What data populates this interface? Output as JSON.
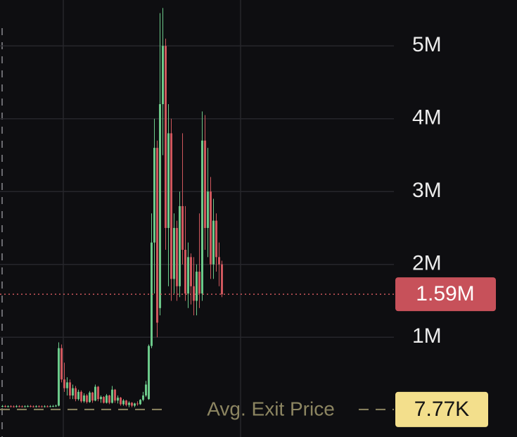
{
  "chart_data": {
    "type": "candlestick",
    "ylim": [
      -370000,
      5630000
    ],
    "yticks": [
      {
        "value": 1000000,
        "label": "1M"
      },
      {
        "value": 2000000,
        "label": "2M"
      },
      {
        "value": 3000000,
        "label": "3M"
      },
      {
        "value": 4000000,
        "label": "4M"
      },
      {
        "value": 5000000,
        "label": "5M"
      }
    ],
    "grid": true,
    "up_color": "#6cc98a",
    "down_color": "#cf575d",
    "current_price": {
      "value": 1590000,
      "label": "1.59M"
    },
    "avg_exit_price": {
      "value": 7770,
      "label": "7.77K",
      "text": "Avg. Exit Price"
    },
    "open": [
      50000,
      55000,
      48000,
      52000,
      50000,
      47000,
      53000,
      50000,
      49000,
      51000,
      54000,
      50000,
      48000,
      52000,
      50000,
      49000,
      51000,
      50000,
      53000,
      55000,
      60000,
      850000,
      420000,
      300000,
      380000,
      200000,
      300000,
      150000,
      250000,
      120000,
      200000,
      110000,
      240000,
      130000,
      320000,
      150000,
      180000,
      100000,
      200000,
      100000,
      280000,
      130000,
      170000,
      80000,
      130000,
      70000,
      100000,
      60000,
      90000,
      80000,
      140000,
      200000,
      150000,
      880000,
      2300000,
      3600000,
      1400000,
      4200000,
      5000000,
      2500000,
      3800000,
      1800000,
      2500000,
      1700000,
      2800000,
      2200000,
      1600000,
      2100000,
      1700000,
      1500000,
      1900000,
      1600000,
      3700000,
      2500000,
      3000000,
      2000000,
      2600000,
      2100000,
      2000000
    ],
    "high": [
      70000,
      68000,
      65000,
      66000,
      64000,
      68000,
      66000,
      64000,
      65000,
      69000,
      68000,
      63000,
      66000,
      65000,
      64000,
      66000,
      65000,
      67000,
      70000,
      75000,
      930000,
      900000,
      650000,
      450000,
      420000,
      350000,
      330000,
      280000,
      270000,
      230000,
      220000,
      260000,
      250000,
      350000,
      330000,
      200000,
      190000,
      220000,
      210000,
      330000,
      290000,
      200000,
      180000,
      150000,
      140000,
      120000,
      110000,
      100000,
      120000,
      150000,
      250000,
      400000,
      900000,
      2700000,
      4000000,
      3700000,
      5450000,
      5520000,
      5100000,
      4200000,
      4000000,
      2700000,
      2600000,
      3000000,
      3800000,
      2800000,
      2300000,
      2150000,
      2100000,
      2000000,
      2700000,
      4100000,
      4050000,
      3600000,
      3200000,
      2900000,
      2700000,
      2300000,
      2050000
    ],
    "low": [
      38000,
      36000,
      36000,
      38000,
      35000,
      35000,
      38000,
      37000,
      37000,
      39000,
      38000,
      36000,
      36000,
      38000,
      37000,
      37000,
      38000,
      38000,
      41000,
      43000,
      50000,
      380000,
      250000,
      200000,
      150000,
      150000,
      120000,
      130000,
      100000,
      100000,
      90000,
      100000,
      100000,
      120000,
      120000,
      100000,
      90000,
      90000,
      80000,
      90000,
      100000,
      90000,
      60000,
      60000,
      50000,
      40000,
      40000,
      40000,
      60000,
      70000,
      120000,
      180000,
      140000,
      850000,
      1600000,
      1000000,
      1300000,
      3500000,
      2200000,
      1700000,
      1500000,
      1600000,
      1500000,
      1550000,
      2000000,
      1500000,
      1400000,
      1450000,
      1300000,
      1300000,
      1400000,
      1500000,
      2200000,
      2100000,
      1800000,
      1800000,
      1900000,
      1700000,
      1550000
    ],
    "close": [
      55000,
      48000,
      52000,
      50000,
      47000,
      53000,
      50000,
      49000,
      51000,
      54000,
      50000,
      48000,
      52000,
      50000,
      49000,
      51000,
      50000,
      53000,
      55000,
      60000,
      850000,
      420000,
      300000,
      380000,
      200000,
      300000,
      150000,
      250000,
      120000,
      200000,
      110000,
      240000,
      130000,
      320000,
      150000,
      180000,
      100000,
      200000,
      100000,
      280000,
      130000,
      170000,
      80000,
      130000,
      70000,
      100000,
      60000,
      90000,
      80000,
      140000,
      200000,
      350000,
      880000,
      2300000,
      3600000,
      1200000,
      4200000,
      5000000,
      2500000,
      3800000,
      1800000,
      2500000,
      1700000,
      2800000,
      2200000,
      1600000,
      2100000,
      1700000,
      1500000,
      1900000,
      1600000,
      3700000,
      2500000,
      3000000,
      2000000,
      2600000,
      2100000,
      2000000,
      1590000
    ]
  }
}
